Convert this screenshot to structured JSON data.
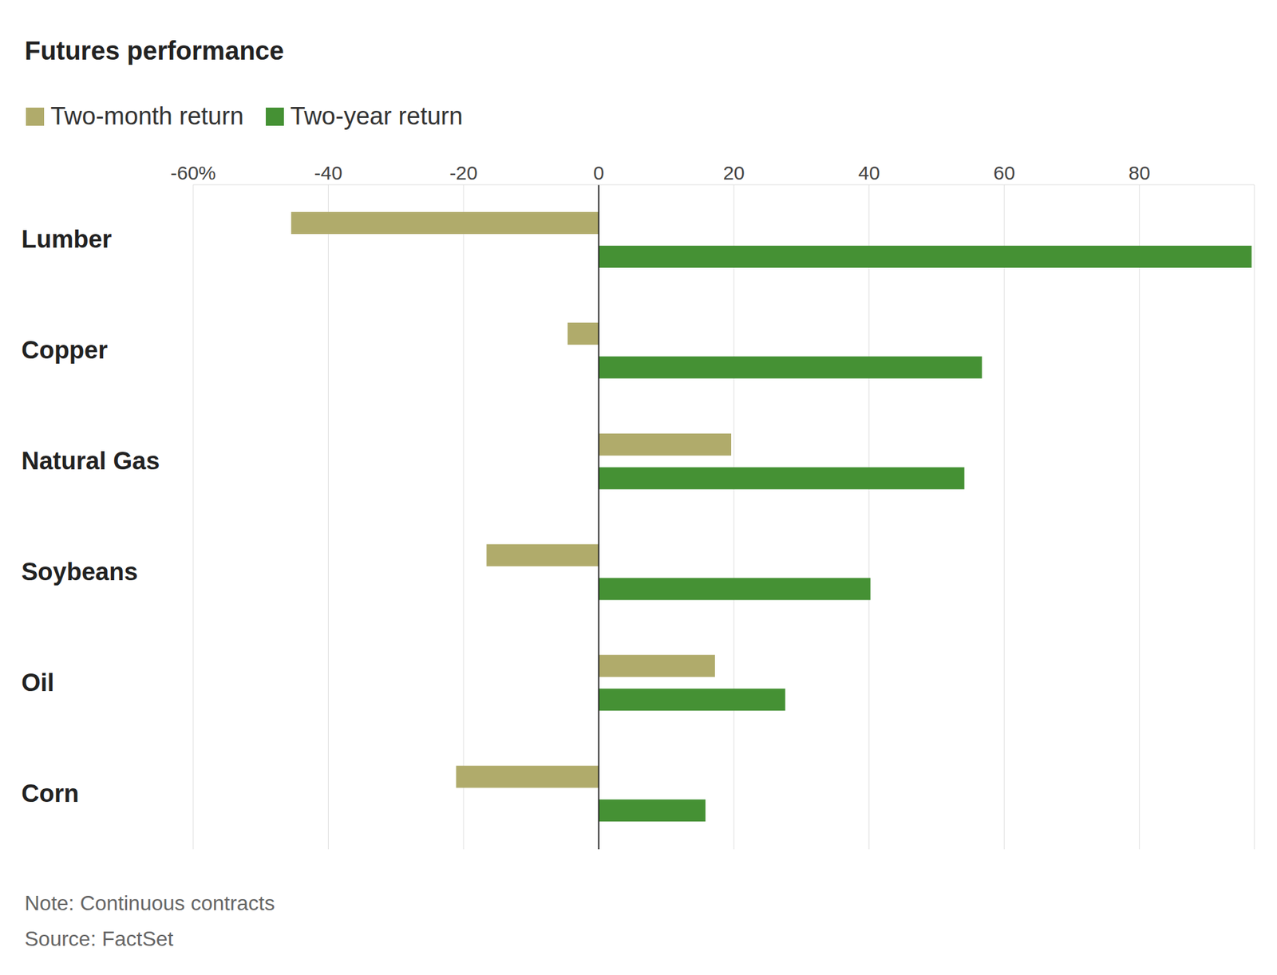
{
  "chart_data": {
    "type": "bar",
    "title": "Futures performance",
    "orientation": "horizontal",
    "categories": [
      "Lumber",
      "Copper",
      "Natural Gas",
      "Soybeans",
      "Oil",
      "Corn"
    ],
    "series": [
      {
        "name": "Two-month return",
        "color": "#b0ab6b",
        "values": [
          -45.5,
          -4.6,
          19.6,
          -16.6,
          17.2,
          -21.1
        ]
      },
      {
        "name": "Two-year return",
        "color": "#459134",
        "values": [
          96.6,
          56.7,
          54.1,
          40.2,
          27.6,
          15.8
        ]
      }
    ],
    "xlim": [
      -60,
      97
    ],
    "xticks": [
      {
        "value": -60,
        "label": "-60%"
      },
      -40,
      -20,
      0,
      20,
      40,
      60,
      80
    ],
    "grid": true,
    "legend": "top-left",
    "notes": [
      "Note: Continuous contracts",
      "Source: FactSet"
    ]
  }
}
